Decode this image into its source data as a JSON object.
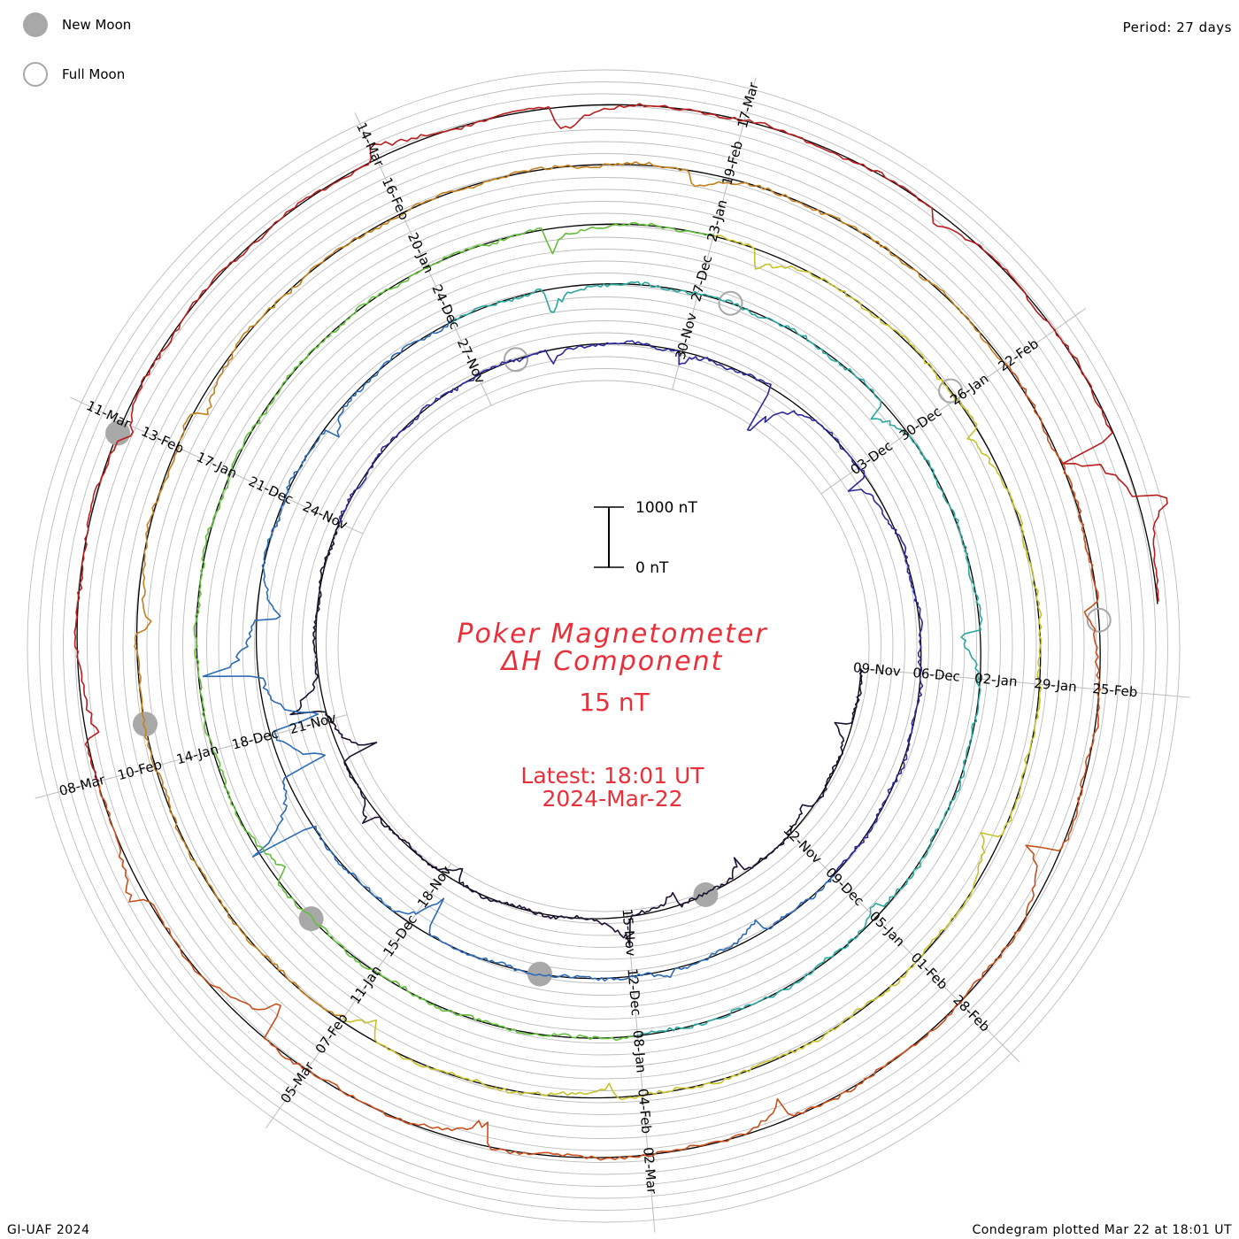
{
  "header": {
    "period_label": "Period: 27 days",
    "legend": [
      {
        "label": "New Moon",
        "icon": "new-moon-icon"
      },
      {
        "label": "Full Moon",
        "icon": "full-moon-icon"
      }
    ]
  },
  "footer": {
    "left": "GI-UAF 2024",
    "right": "Condegram plotted Mar 22 at 18:01 UT"
  },
  "center": {
    "title_line1": "Poker Magnetometer",
    "title_line2": "ΔH Component",
    "baseline": "15 nT",
    "latest_line1": "Latest: 18:01 UT",
    "latest_line2": "2024-Mar-22",
    "scale_top": "1000 nT",
    "scale_bottom": "0 nT"
  },
  "colors": {
    "title": "#e8303a",
    "grid": "#bdbdbd",
    "moon": "#a8a8a8"
  },
  "chart_data": {
    "type": "line",
    "title": "Poker Magnetometer ΔH Component",
    "baseline": "15 nT",
    "period_days": 27,
    "scale_bar_nT": [
      0,
      1000
    ],
    "date_labels": [
      {
        "text": "09-Nov",
        "day": 0
      },
      {
        "text": "12-Nov",
        "day": 3
      },
      {
        "text": "15-Nov",
        "day": 6
      },
      {
        "text": "18-Nov",
        "day": 9
      },
      {
        "text": "21-Nov",
        "day": 12
      },
      {
        "text": "24-Nov",
        "day": 15
      },
      {
        "text": "27-Nov",
        "day": 18
      },
      {
        "text": "30-Nov",
        "day": 21
      },
      {
        "text": "03-Dec",
        "day": 24
      },
      {
        "text": "06-Dec",
        "day": 27
      },
      {
        "text": "09-Dec",
        "day": 30
      },
      {
        "text": "12-Dec",
        "day": 33
      },
      {
        "text": "15-Dec",
        "day": 36
      },
      {
        "text": "18-Dec",
        "day": 39
      },
      {
        "text": "21-Dec",
        "day": 42
      },
      {
        "text": "24-Dec",
        "day": 45
      },
      {
        "text": "27-Dec",
        "day": 48
      },
      {
        "text": "30-Dec",
        "day": 51
      },
      {
        "text": "02-Jan",
        "day": 54
      },
      {
        "text": "05-Jan",
        "day": 57
      },
      {
        "text": "08-Jan",
        "day": 60
      },
      {
        "text": "11-Jan",
        "day": 63
      },
      {
        "text": "14-Jan",
        "day": 66
      },
      {
        "text": "17-Jan",
        "day": 69
      },
      {
        "text": "20-Jan",
        "day": 72
      },
      {
        "text": "23-Jan",
        "day": 75
      },
      {
        "text": "26-Jan",
        "day": 78
      },
      {
        "text": "29-Jan",
        "day": 81
      },
      {
        "text": "01-Feb",
        "day": 84
      },
      {
        "text": "04-Feb",
        "day": 87
      },
      {
        "text": "07-Feb",
        "day": 90
      },
      {
        "text": "10-Feb",
        "day": 93
      },
      {
        "text": "13-Feb",
        "day": 96
      },
      {
        "text": "16-Feb",
        "day": 99
      },
      {
        "text": "19-Feb",
        "day": 102
      },
      {
        "text": "22-Feb",
        "day": 105
      },
      {
        "text": "25-Feb",
        "day": 108
      },
      {
        "text": "28-Feb",
        "day": 111
      },
      {
        "text": "02-Mar",
        "day": 114
      },
      {
        "text": "05-Mar",
        "day": 117
      },
      {
        "text": "08-Mar",
        "day": 120
      },
      {
        "text": "11-Mar",
        "day": 123
      },
      {
        "text": "14-Mar",
        "day": 126
      },
      {
        "text": "17-Mar",
        "day": 129
      }
    ],
    "new_moons_day": [
      4.7,
      34.2,
      63.9,
      93.4,
      122.9
    ],
    "full_moons_day": [
      18.6,
      48.4,
      77.9,
      107.4
    ],
    "latest_day": 134.3,
    "events": [
      {
        "day": 1.0,
        "nT": -300
      },
      {
        "day": 2.5,
        "nT": -150
      },
      {
        "day": 4.0,
        "nT": -250
      },
      {
        "day": 5.2,
        "nT": -300
      },
      {
        "day": 6.0,
        "nT": 450
      },
      {
        "day": 8.8,
        "nT": -200
      },
      {
        "day": 10.4,
        "nT": 280
      },
      {
        "day": 11.4,
        "nT": -550
      },
      {
        "day": 12.2,
        "nT": 600
      },
      {
        "day": 19.1,
        "nT": -250
      },
      {
        "day": 21.0,
        "nT": -220
      },
      {
        "day": 22.4,
        "nT": -950
      },
      {
        "day": 24.2,
        "nT": -350
      },
      {
        "day": 31.2,
        "nT": -320
      },
      {
        "day": 32.5,
        "nT": 150
      },
      {
        "day": 35.8,
        "nT": -600
      },
      {
        "day": 37.8,
        "nT": 1050
      },
      {
        "day": 38.5,
        "nT": -850
      },
      {
        "day": 39.1,
        "nT": -950
      },
      {
        "day": 39.8,
        "nT": 900
      },
      {
        "day": 40.5,
        "nT": -500
      },
      {
        "day": 43.0,
        "nT": -280
      },
      {
        "day": 46.2,
        "nT": -420
      },
      {
        "day": 50.6,
        "nT": -280
      },
      {
        "day": 53.5,
        "nT": -420
      },
      {
        "day": 56.9,
        "nT": -200
      },
      {
        "day": 64.5,
        "nT": -250
      },
      {
        "day": 73.3,
        "nT": -400
      },
      {
        "day": 75.5,
        "nT": -330
      },
      {
        "day": 78.4,
        "nT": -250
      },
      {
        "day": 82.6,
        "nT": -330
      },
      {
        "day": 87.3,
        "nT": -230
      },
      {
        "day": 89.7,
        "nT": -280
      },
      {
        "day": 94.3,
        "nT": -300
      },
      {
        "day": 96.4,
        "nT": -250
      },
      {
        "day": 101.7,
        "nT": -300
      },
      {
        "day": 107.3,
        "nT": -280
      },
      {
        "day": 109.5,
        "nT": -500
      },
      {
        "day": 112.8,
        "nT": -280
      },
      {
        "day": 115.4,
        "nT": -450
      },
      {
        "day": 117.5,
        "nT": -650
      },
      {
        "day": 119.0,
        "nT": 300
      },
      {
        "day": 120.4,
        "nT": -250
      },
      {
        "day": 122.9,
        "nT": -260
      },
      {
        "day": 126.0,
        "nT": 280
      },
      {
        "day": 127.5,
        "nT": -450
      },
      {
        "day": 130.7,
        "nT": -200
      },
      {
        "day": 133.0,
        "nT": -950
      },
      {
        "day": 133.5,
        "nT": 600
      }
    ],
    "series_colors": [
      "#1a1230",
      "#2e2a9a",
      "#2d6ab5",
      "#2aa8a0",
      "#63be3a",
      "#c7c22c",
      "#c2801e",
      "#c8501c",
      "#b81e1e"
    ]
  }
}
